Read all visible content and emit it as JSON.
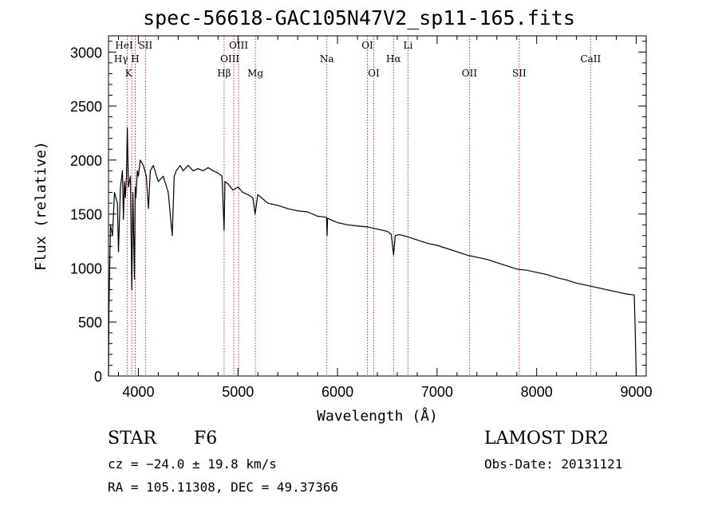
{
  "chart_data": {
    "type": "line",
    "title": "spec-56618-GAC105N47V2_sp11-165.fits",
    "xlabel": "Wavelength (Å)",
    "ylabel": "Flux (relative)",
    "xlim": [
      3700,
      9100
    ],
    "ylim": [
      0,
      3150
    ],
    "xticks": [
      "4000",
      "5000",
      "6000",
      "7000",
      "8000",
      "9000"
    ],
    "xtick_values": [
      4000,
      5000,
      6000,
      7000,
      8000,
      9000
    ],
    "yticks": [
      "0",
      "500",
      "1000",
      "1500",
      "2000",
      "2500",
      "3000"
    ],
    "ytick_values": [
      0,
      500,
      1000,
      1500,
      2000,
      2500,
      3000
    ],
    "grid": false,
    "series_color": "#000000",
    "line_color": "#cc3333",
    "series": [
      {
        "x": [
          3700,
          3705,
          3720,
          3740,
          3760,
          3790,
          3800,
          3820,
          3840,
          3850,
          3860,
          3870,
          3880,
          3889,
          3900,
          3920,
          3934,
          3945,
          3960,
          3968,
          3975,
          3990,
          4000,
          4020,
          4050,
          4080,
          4101,
          4120,
          4150,
          4200,
          4250,
          4300,
          4340,
          4360,
          4380,
          4420,
          4450,
          4500,
          4550,
          4600,
          4650,
          4700,
          4750,
          4800,
          4840,
          4861,
          4870,
          4900,
          4950,
          5000,
          5050,
          5100,
          5150,
          5172,
          5200,
          5250,
          5300,
          5400,
          5500,
          5600,
          5700,
          5800,
          5890,
          5895,
          5900,
          5950,
          6000,
          6100,
          6200,
          6300,
          6400,
          6500,
          6540,
          6563,
          6580,
          6620,
          6700,
          6800,
          6900,
          7000,
          7100,
          7200,
          7300,
          7400,
          7500,
          7600,
          7700,
          7800,
          7900,
          8000,
          8100,
          8200,
          8300,
          8400,
          8500,
          8600,
          8700,
          8800,
          8900,
          8980,
          8990,
          9000
        ],
        "y": [
          0,
          650,
          1400,
          1300,
          1700,
          1600,
          1150,
          1750,
          1900,
          1450,
          1800,
          1650,
          1850,
          2300,
          1750,
          1850,
          800,
          1700,
          900,
          1750,
          1650,
          1900,
          1850,
          2000,
          1950,
          1850,
          1550,
          1900,
          1950,
          1800,
          1850,
          1700,
          1300,
          1850,
          1900,
          1950,
          1900,
          1950,
          1900,
          1920,
          1900,
          1930,
          1900,
          1880,
          1850,
          1350,
          1800,
          1780,
          1720,
          1750,
          1700,
          1680,
          1650,
          1500,
          1680,
          1640,
          1600,
          1580,
          1550,
          1530,
          1520,
          1480,
          1470,
          1300,
          1460,
          1440,
          1420,
          1400,
          1390,
          1380,
          1360,
          1340,
          1310,
          1120,
          1300,
          1310,
          1290,
          1260,
          1230,
          1210,
          1180,
          1150,
          1120,
          1100,
          1080,
          1050,
          1020,
          990,
          980,
          960,
          940,
          910,
          890,
          860,
          840,
          820,
          800,
          780,
          760,
          750,
          400,
          0
        ]
      }
    ],
    "lines": [
      {
        "wavelength": 3889,
        "label": "HeI",
        "row": 0,
        "offset": -4
      },
      {
        "wavelength": 3970,
        "label": "Hγ",
        "row": 1,
        "offset": -18
      },
      {
        "wavelength": 3934,
        "label": "K",
        "row": 2,
        "offset": -4
      },
      {
        "wavelength": 3968,
        "label": "H",
        "row": 1,
        "offset": 0
      },
      {
        "wavelength": 4072,
        "label": "SII",
        "row": 0,
        "offset": 0
      },
      {
        "wavelength": 4861,
        "label": "Hβ",
        "row": 2,
        "offset": 0
      },
      {
        "wavelength": 4959,
        "label": "OIII",
        "row": 1,
        "offset": -5
      },
      {
        "wavelength": 5007,
        "label": "OIII",
        "row": 0,
        "offset": 0
      },
      {
        "wavelength": 5175,
        "label": "Mg",
        "row": 2,
        "offset": 0
      },
      {
        "wavelength": 5893,
        "label": "Na",
        "row": 1,
        "offset": 0
      },
      {
        "wavelength": 6300,
        "label": "OI",
        "row": 0,
        "offset": 0
      },
      {
        "wavelength": 6364,
        "label": "OI",
        "row": 2,
        "offset": 0
      },
      {
        "wavelength": 6563,
        "label": "Hα",
        "row": 1,
        "offset": 0
      },
      {
        "wavelength": 6708,
        "label": "Li",
        "row": 0,
        "offset": 0
      },
      {
        "wavelength": 7325,
        "label": "OII",
        "row": 2,
        "offset": 0
      },
      {
        "wavelength": 7825,
        "label": "SII",
        "row": 2,
        "offset": 0
      },
      {
        "wavelength": 8542,
        "label": "CaII",
        "row": 1,
        "offset": 0
      }
    ]
  },
  "info": {
    "object_class": "STAR",
    "subclass": "F6",
    "survey": "LAMOST DR2",
    "cz": "cz = −24.0 ± 19.8 km/s",
    "obs_date": "Obs-Date: 20131121",
    "coords": "RA = 105.11308, DEC =  49.37366"
  }
}
